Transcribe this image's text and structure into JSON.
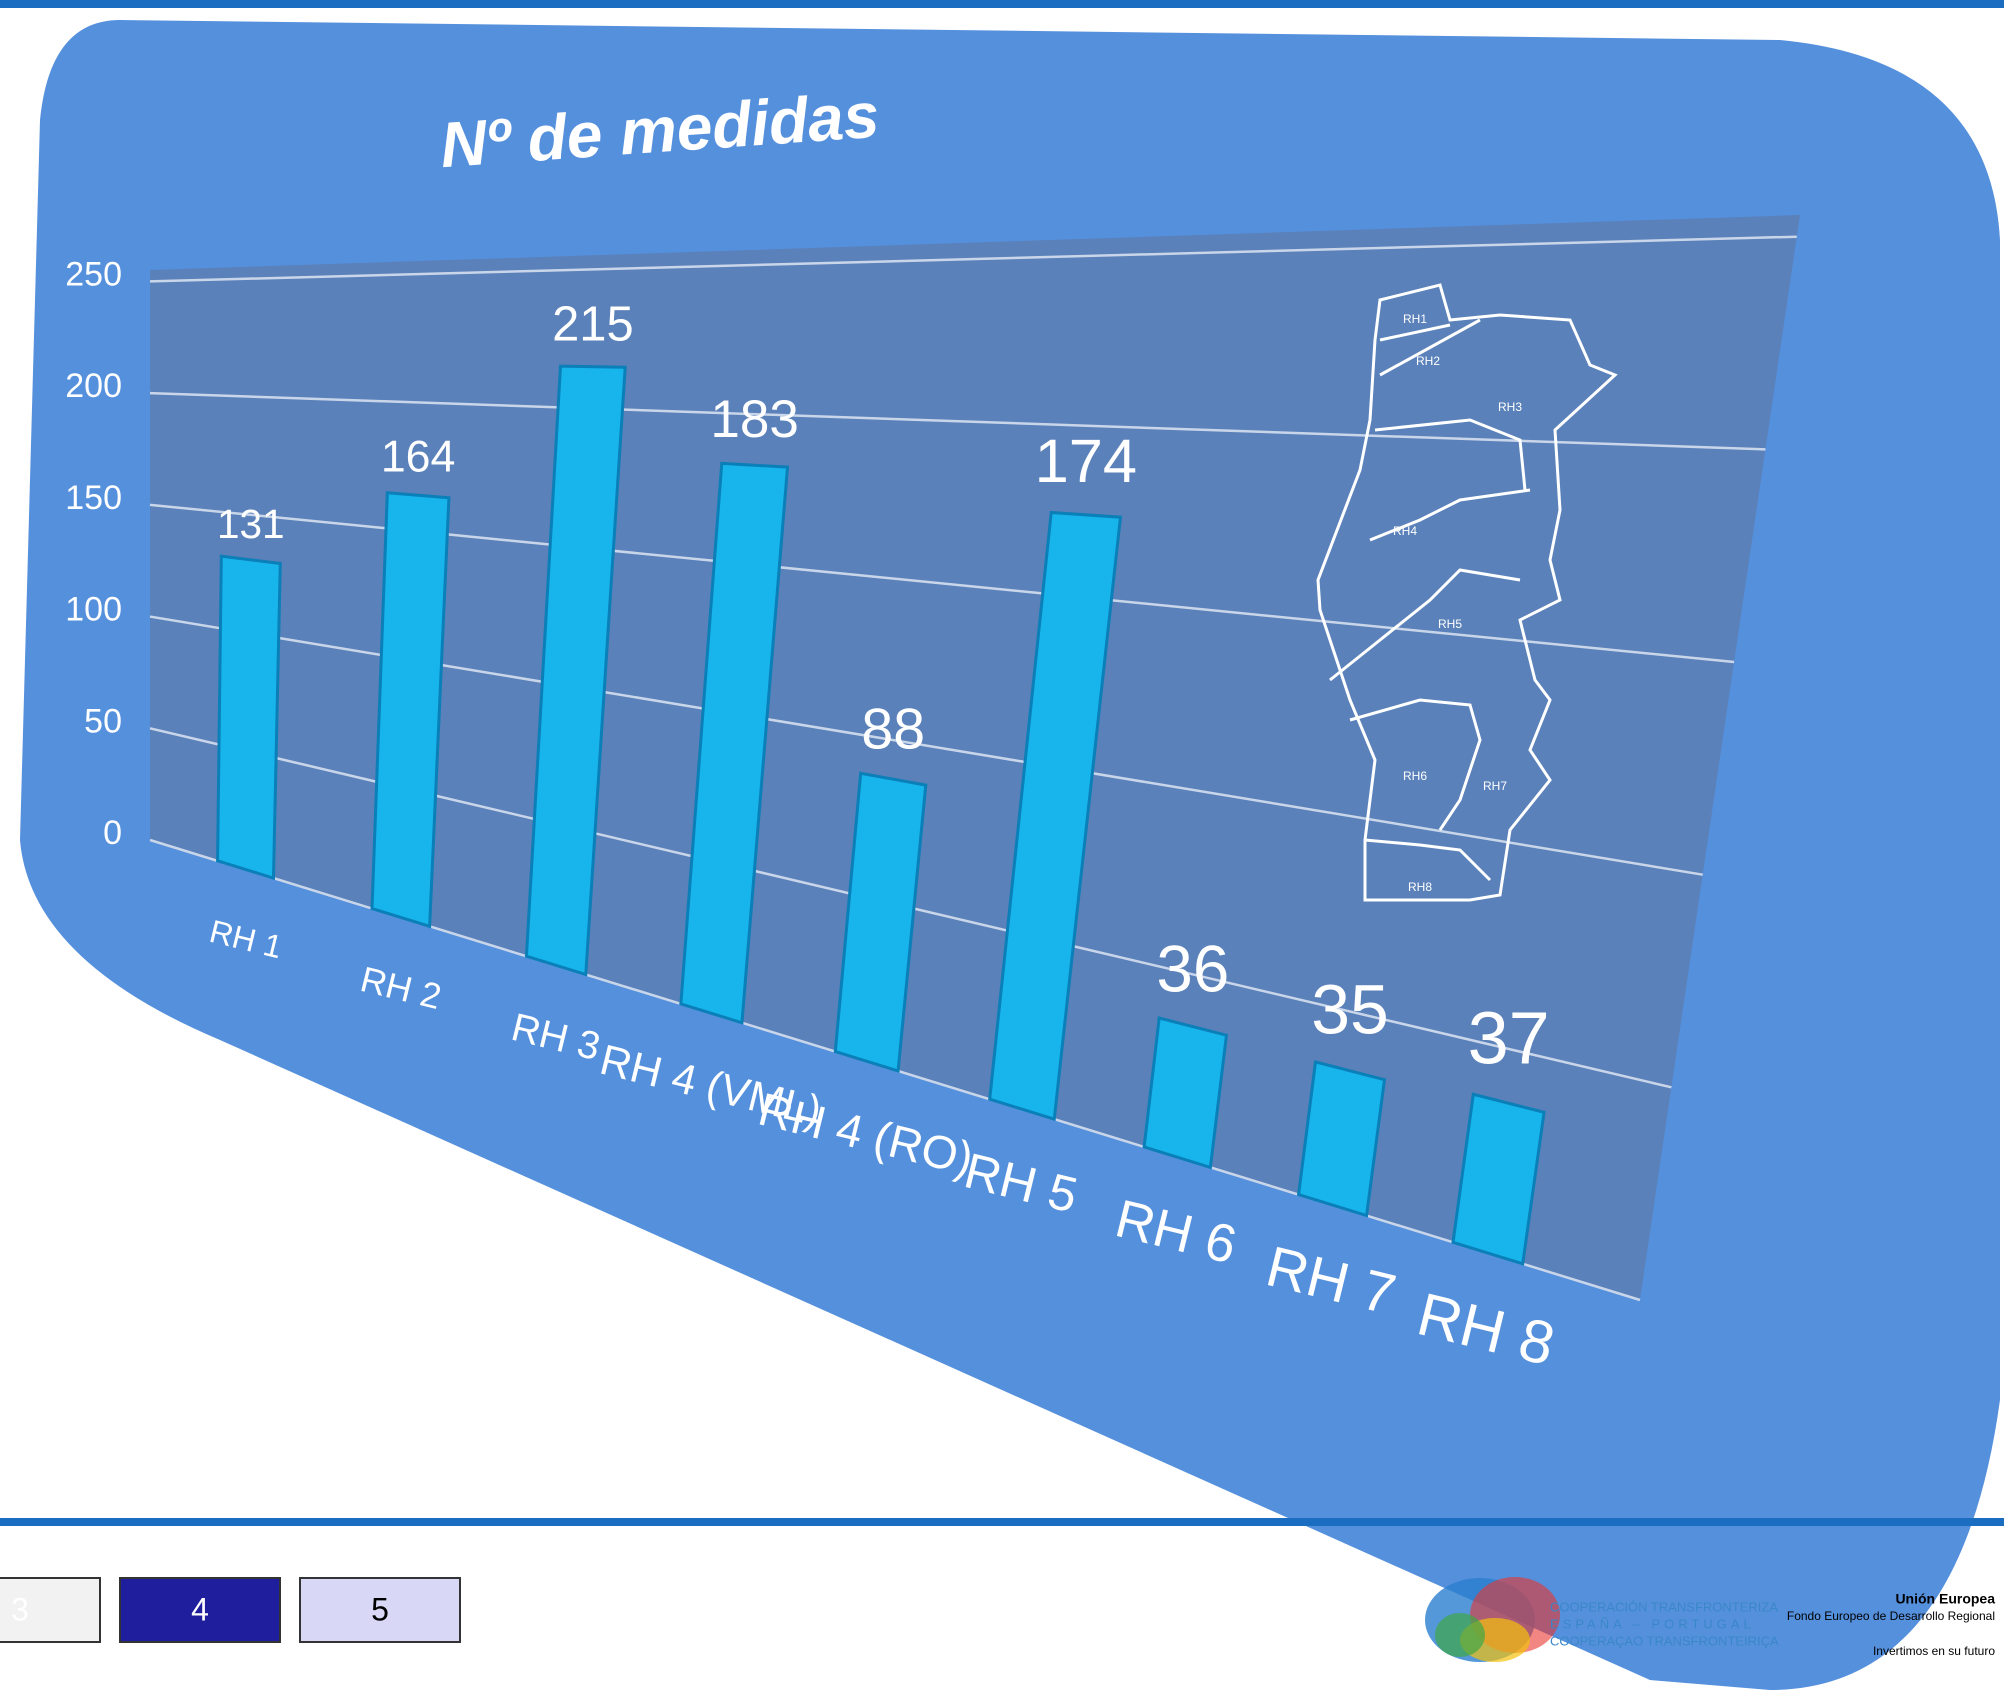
{
  "chart_data": {
    "type": "bar",
    "title": "Nº de medidas",
    "categories": [
      "RH 1",
      "RH 2",
      "RH 3",
      "RH 4 (VML)",
      "RH 4 (RO)",
      "RH 5",
      "RH 6",
      "RH 7",
      "RH 8"
    ],
    "values": [
      131,
      164,
      215,
      183,
      88,
      174,
      36,
      35,
      37
    ],
    "color": "#18b4ec",
    "ylim": [
      0,
      250
    ],
    "yticks": [
      0,
      50,
      100,
      150,
      200,
      250
    ],
    "grid": true,
    "map_labels": [
      "RH1",
      "RH2",
      "RH3",
      "RH4",
      "RH5",
      "RH6",
      "RH7",
      "RH8"
    ]
  },
  "pagination": [
    "3",
    "4",
    "5"
  ],
  "footer": {
    "program": [
      "COOPERACIÓN TRANSFRONTERIZA",
      "ESPAÑA – PORTUGAL",
      "COOPERAÇAO TRANSFRONTEIRIÇA"
    ],
    "eu": "Unión Europea",
    "fund": "Fondo Europeo de Desarrollo Regional",
    "slogan": "Invertimos en su futuro"
  }
}
